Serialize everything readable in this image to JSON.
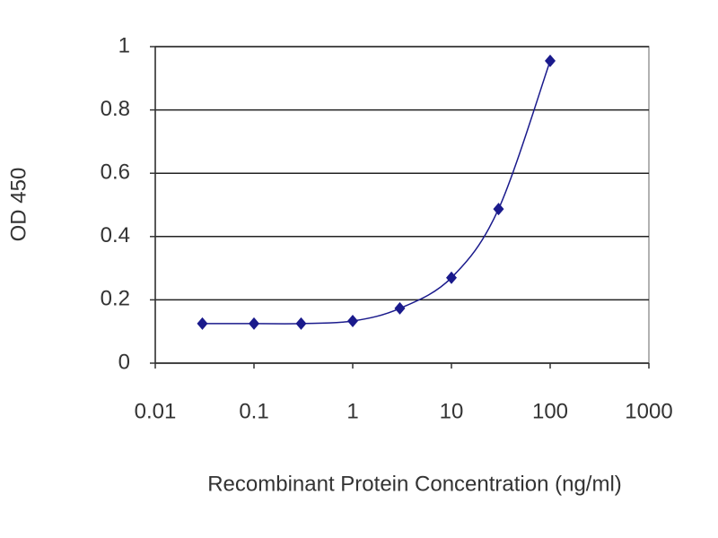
{
  "chart_data": {
    "type": "line",
    "x_label": "Recombinant Protein Concentration (ng/ml)",
    "y_label": "OD 450",
    "x": [
      0.03,
      0.1,
      0.3,
      1,
      3,
      10,
      30,
      100
    ],
    "series": [
      {
        "color": "#1a1a8c",
        "values": [
          0.125,
          0.125,
          0.125,
          0.133,
          0.173,
          0.27,
          0.487,
          0.955
        ]
      }
    ],
    "xlim": [
      0.01,
      1000
    ],
    "xticks": [
      0.01,
      0.1,
      1,
      10,
      100,
      1000
    ],
    "xscale": "log",
    "ylim": [
      0,
      1
    ],
    "yticks": [
      0,
      0.2,
      0.4,
      0.6,
      0.8,
      1
    ],
    "grid": true
  }
}
